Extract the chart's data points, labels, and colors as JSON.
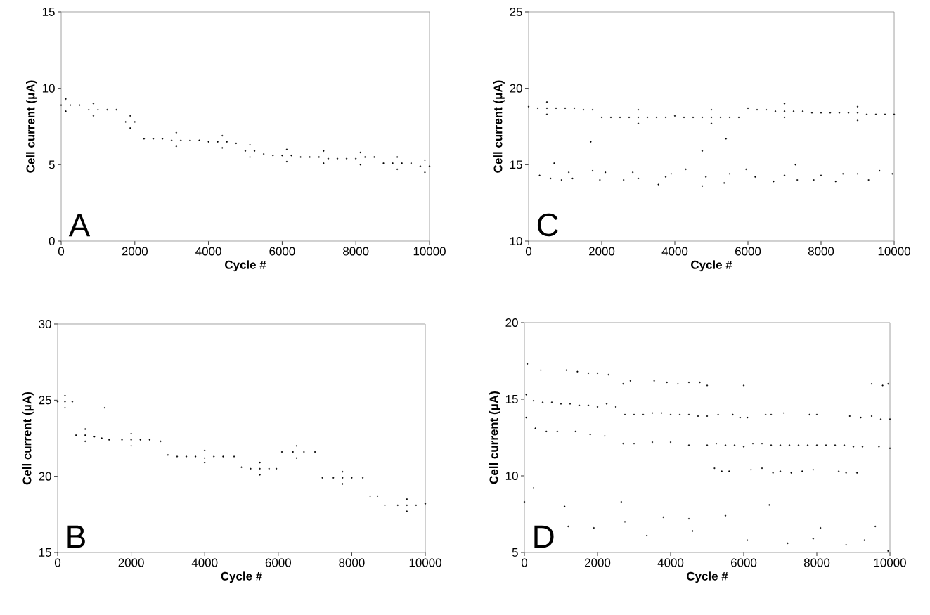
{
  "chart_data": [
    {
      "type": "scatter",
      "xlabel": "Cycle #",
      "ylabel": "Cell current (μA)",
      "annotations": [
        "A"
      ],
      "color": "#000000",
      "marker": "circle",
      "xlim": [
        0,
        10000
      ],
      "ylim": [
        0,
        15
      ],
      "xticks": [
        0,
        2000,
        4000,
        6000,
        8000,
        10000
      ],
      "yticks": [
        0,
        5,
        10,
        15
      ],
      "x": [
        0,
        250,
        500,
        750,
        1000,
        1250,
        1500,
        1750,
        2000,
        2250,
        2500,
        2750,
        3000,
        3250,
        3500,
        3750,
        4000,
        4250,
        4500,
        4750,
        5000,
        5250,
        5500,
        5750,
        6000,
        6250,
        6500,
        6750,
        7000,
        7250,
        7500,
        7750,
        8000,
        8250,
        8500,
        8750,
        9000,
        9250,
        9500,
        9750,
        10000,
        125,
        875,
        1875,
        3125,
        4375,
        5125,
        6125,
        7125,
        8125,
        9125,
        9875,
        125,
        875,
        1875,
        3125,
        4375,
        5125,
        6125,
        7125,
        8125,
        9125,
        9875
      ],
      "values": [
        8.9,
        8.9,
        8.9,
        8.6,
        8.6,
        8.6,
        8.6,
        7.8,
        7.8,
        6.7,
        6.7,
        6.7,
        6.6,
        6.6,
        6.6,
        6.6,
        6.5,
        6.5,
        6.5,
        6.4,
        5.9,
        5.9,
        5.7,
        5.6,
        5.6,
        5.6,
        5.5,
        5.5,
        5.5,
        5.4,
        5.4,
        5.4,
        5.4,
        5.5,
        5.5,
        5.1,
        5.1,
        5.1,
        5.1,
        4.9,
        4.9,
        9.3,
        9.0,
        8.2,
        7.1,
        6.9,
        6.3,
        6.0,
        5.9,
        5.8,
        5.5,
        5.3,
        8.5,
        8.2,
        7.4,
        6.2,
        6.1,
        5.5,
        5.2,
        5.1,
        5.0,
        4.7,
        4.5
      ]
    },
    {
      "type": "scatter",
      "xlabel": "Cycle #",
      "ylabel": "Cell current (μA)",
      "annotations": [
        "C"
      ],
      "color": "#000000",
      "marker": "circle",
      "xlim": [
        0,
        10000
      ],
      "ylim": [
        10,
        25
      ],
      "xticks": [
        0,
        2000,
        4000,
        6000,
        8000,
        10000
      ],
      "yticks": [
        10,
        15,
        20,
        25
      ],
      "x": [
        0,
        250,
        500,
        750,
        1000,
        1250,
        1500,
        1750,
        2000,
        2250,
        2500,
        2750,
        3000,
        3250,
        3500,
        3750,
        4000,
        4250,
        4500,
        4750,
        5000,
        5250,
        5500,
        5750,
        6000,
        6250,
        6500,
        6750,
        7000,
        7250,
        7500,
        7750,
        8000,
        8250,
        8500,
        8750,
        9000,
        9250,
        9500,
        9750,
        10000,
        500,
        3000,
        5000,
        7000,
        9000,
        500,
        3000,
        5000,
        7000,
        9000,
        300,
        600,
        700,
        900,
        1100,
        1200,
        1750,
        1950,
        2100,
        2600,
        2850,
        3000,
        3550,
        3750,
        3900,
        4300,
        4750,
        4850,
        5350,
        5500,
        5950,
        6200,
        6700,
        7000,
        7300,
        7350,
        7800,
        8000,
        8400,
        8600,
        9000,
        9300,
        9600,
        9950,
        1700,
        5400,
        4750
      ],
      "values": [
        18.8,
        18.7,
        18.7,
        18.7,
        18.7,
        18.7,
        18.6,
        18.6,
        18.1,
        18.1,
        18.1,
        18.1,
        18.1,
        18.1,
        18.1,
        18.1,
        18.2,
        18.1,
        18.1,
        18.1,
        18.1,
        18.1,
        18.1,
        18.1,
        18.7,
        18.6,
        18.6,
        18.5,
        18.5,
        18.5,
        18.5,
        18.4,
        18.4,
        18.4,
        18.4,
        18.4,
        18.4,
        18.3,
        18.3,
        18.3,
        18.3,
        19.1,
        18.6,
        18.6,
        19.0,
        18.8,
        18.3,
        17.7,
        17.7,
        18.1,
        17.9,
        14.3,
        14.1,
        15.1,
        14.0,
        14.5,
        14.1,
        14.6,
        14.0,
        14.5,
        14.0,
        14.5,
        14.1,
        13.7,
        14.2,
        14.4,
        14.7,
        13.6,
        14.2,
        13.8,
        14.4,
        14.7,
        14.2,
        13.9,
        14.3,
        15.0,
        14.0,
        14.0,
        14.3,
        13.9,
        14.4,
        14.4,
        14.0,
        14.6,
        14.4,
        16.5,
        16.7,
        15.9
      ]
    },
    {
      "type": "scatter",
      "xlabel": "Cycle #",
      "ylabel": "Cell current (μA)",
      "annotations": [
        "B"
      ],
      "color": "#000000",
      "marker": "circle",
      "xlim": [
        0,
        10000
      ],
      "ylim": [
        15,
        30
      ],
      "xticks": [
        0,
        2000,
        4000,
        6000,
        8000,
        10000
      ],
      "yticks": [
        15,
        20,
        25,
        30
      ],
      "x": [
        0,
        200,
        400,
        500,
        750,
        1000,
        1200,
        1280,
        1400,
        1750,
        2000,
        2250,
        2500,
        2800,
        3000,
        3250,
        3500,
        3750,
        4000,
        4250,
        4500,
        4800,
        5000,
        5250,
        5500,
        5750,
        5950,
        6100,
        6400,
        6700,
        7000,
        7200,
        7500,
        7750,
        8000,
        8300,
        8500,
        8700,
        8900,
        9250,
        9500,
        9750,
        10000,
        200,
        750,
        2000,
        4000,
        5500,
        6500,
        7750,
        9500,
        200,
        750,
        2000,
        4000,
        5500,
        6500,
        7750,
        9500
      ],
      "values": [
        24.9,
        24.9,
        24.9,
        22.7,
        22.7,
        22.6,
        22.5,
        24.5,
        22.4,
        22.4,
        22.4,
        22.4,
        22.4,
        22.3,
        21.4,
        21.3,
        21.3,
        21.3,
        21.2,
        21.3,
        21.3,
        21.3,
        20.6,
        20.5,
        20.5,
        20.5,
        20.5,
        21.6,
        21.6,
        21.6,
        21.6,
        19.9,
        19.9,
        19.9,
        19.9,
        19.9,
        18.7,
        18.7,
        18.1,
        18.1,
        18.1,
        18.1,
        18.2,
        25.3,
        23.1,
        22.8,
        21.7,
        20.9,
        22.0,
        20.3,
        18.5,
        24.5,
        22.3,
        22.0,
        20.9,
        20.1,
        21.2,
        19.5,
        17.7
      ]
    },
    {
      "type": "scatter",
      "xlabel": "Cycle #",
      "ylabel": "Cell current (μA)",
      "annotations": [
        "D"
      ],
      "color": "#000000",
      "marker": "circle",
      "xlim": [
        0,
        10000
      ],
      "ylim": [
        5,
        20
      ],
      "xticks": [
        0,
        2000,
        4000,
        6000,
        8000,
        10000
      ],
      "yticks": [
        5,
        10,
        15,
        20
      ],
      "x": [
        50,
        250,
        500,
        750,
        1000,
        1250,
        1500,
        1750,
        2000,
        2250,
        2500,
        2750,
        3000,
        3250,
        3500,
        3750,
        4000,
        4250,
        4500,
        4750,
        5000,
        5250,
        5500,
        5750,
        6000,
        6250,
        6500,
        6750,
        7000,
        7250,
        7500,
        7750,
        8000,
        8250,
        8500,
        8750,
        9000,
        9250,
        9500,
        9750,
        10000,
        80,
        450,
        1150,
        1450,
        1750,
        2000,
        2300,
        2700,
        2900,
        3550,
        3900,
        4200,
        4500,
        4800,
        5000,
        6000,
        9500,
        9800,
        9950,
        50,
        300,
        600,
        900,
        1400,
        1800,
        2200,
        2700,
        3000,
        3500,
        4000,
        4500,
        5000,
        9700,
        10000,
        5200,
        5400,
        5600,
        6200,
        6500,
        6800,
        7000,
        7300,
        7600,
        7900,
        8600,
        8800,
        9100,
        5300,
        5700,
        5900,
        6100,
        6600,
        6750,
        7100,
        7800,
        8000,
        8900,
        9200,
        0,
        250,
        1100,
        1200,
        1900,
        2650,
        2750,
        3350,
        3800,
        4500,
        4600,
        5500,
        6100,
        6700,
        7200,
        7900,
        8100,
        8800,
        9300,
        9600,
        9950
      ],
      "values": [
        15.3,
        14.9,
        14.8,
        14.8,
        14.7,
        14.7,
        14.6,
        14.6,
        14.5,
        14.7,
        14.5,
        14.0,
        14.0,
        14.0,
        14.1,
        14.1,
        14.0,
        14.0,
        14.0,
        13.9,
        13.9,
        12.1,
        12.0,
        12.0,
        11.9,
        12.1,
        12.1,
        12.0,
        12.0,
        12.0,
        12.0,
        12.0,
        12.0,
        12.0,
        12.0,
        12.0,
        11.9,
        11.9,
        13.9,
        13.7,
        13.7,
        17.3,
        16.9,
        16.9,
        16.8,
        16.7,
        16.7,
        16.6,
        16.0,
        16.2,
        16.2,
        16.1,
        16.0,
        16.1,
        16.1,
        15.9,
        15.9,
        16.0,
        15.9,
        16.0,
        13.8,
        13.1,
        12.9,
        12.9,
        12.9,
        12.7,
        12.6,
        12.1,
        12.1,
        12.2,
        12.2,
        12.0,
        12.0,
        11.9,
        11.8,
        10.5,
        10.3,
        10.3,
        10.4,
        10.5,
        10.2,
        10.3,
        10.2,
        10.3,
        10.4,
        10.3,
        10.2,
        10.2,
        14.0,
        14.0,
        13.8,
        13.8,
        14.0,
        14.0,
        14.1,
        14.0,
        14.0,
        13.9,
        13.8,
        8.3,
        9.2,
        8.0,
        6.7,
        6.6,
        8.3,
        7.0,
        6.1,
        7.3,
        7.2,
        6.4,
        7.4,
        5.8,
        8.1,
        5.6,
        5.9,
        6.6,
        5.5,
        5.8,
        6.7,
        5.1
      ]
    }
  ]
}
